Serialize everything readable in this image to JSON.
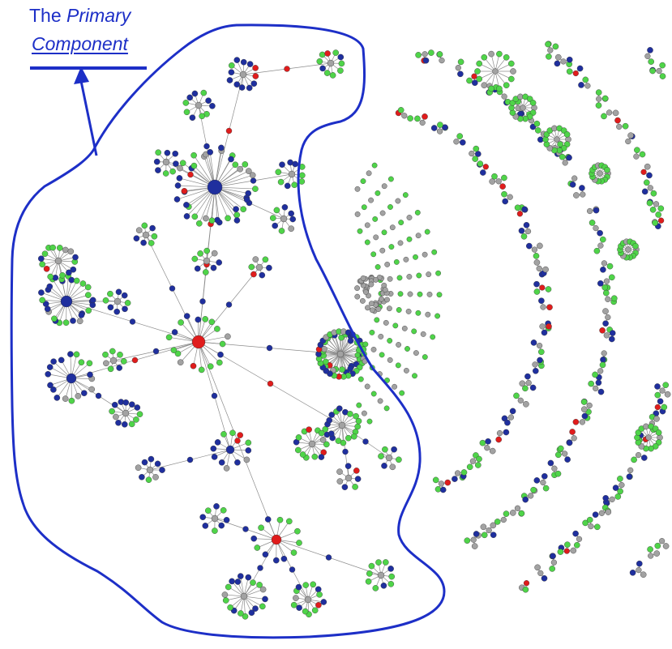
{
  "annotation": {
    "title_plain": "The",
    "title_italic": "Primary",
    "title_line2": "Component"
  },
  "colors": {
    "outline": "#1d2fc7",
    "node_blue": "#1f2f9e",
    "node_green": "#4fd449",
    "node_gray": "#a2a2a2",
    "node_red": "#e01c1c",
    "edge": "#8c8c8c"
  }
}
